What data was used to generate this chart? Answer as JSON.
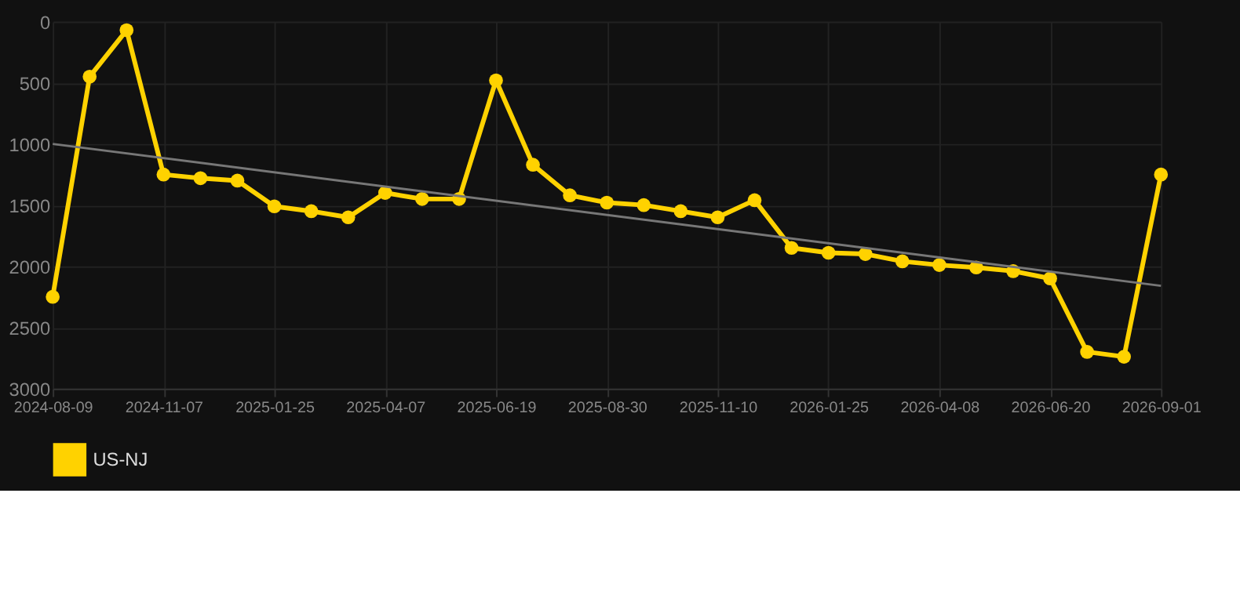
{
  "chart_data": {
    "type": "line",
    "categories": [
      "2024-08-09",
      null,
      null,
      "2024-11-07",
      null,
      null,
      "2025-01-25",
      null,
      null,
      "2025-04-07",
      null,
      null,
      "2025-06-19",
      null,
      null,
      "2025-08-30",
      null,
      null,
      "2025-11-10",
      null,
      null,
      "2026-01-25",
      null,
      null,
      "2026-04-08",
      null,
      null,
      "2026-06-20",
      null,
      null,
      "2026-09-01"
    ],
    "series": [
      {
        "name": "US-NJ",
        "color": "#ffd200",
        "marker": "circle",
        "values": [
          2250,
          450,
          70,
          1250,
          1280,
          1300,
          1510,
          1550,
          1600,
          1400,
          1450,
          1450,
          480,
          1170,
          1420,
          1480,
          1500,
          1550,
          1600,
          1460,
          1850,
          1890,
          1900,
          1960,
          1990,
          2010,
          2040,
          2100,
          2700,
          2740,
          1250
        ]
      },
      {
        "type": "line",
        "color": "#777777",
        "marker": "none",
        "values": [
          1000,
          null,
          null,
          null,
          null,
          null,
          null,
          null,
          null,
          null,
          null,
          null,
          null,
          null,
          null,
          null,
          null,
          null,
          null,
          null,
          null,
          null,
          null,
          null,
          null,
          null,
          null,
          null,
          null,
          null,
          2160
        ]
      }
    ],
    "ylim": [
      3000,
      0
    ],
    "yticks": [
      0,
      500,
      1000,
      1500,
      2000,
      2500,
      3000
    ],
    "grid": true,
    "legend": "bottom"
  }
}
